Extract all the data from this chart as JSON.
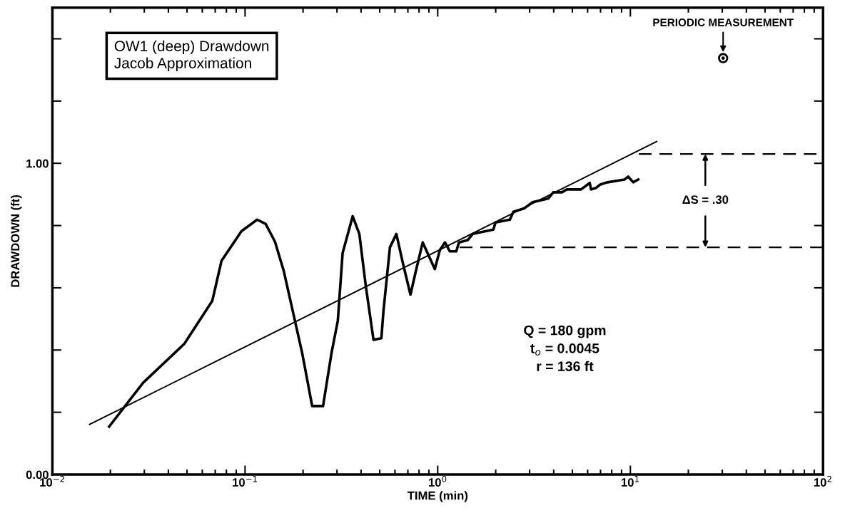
{
  "chart_data": {
    "type": "line",
    "title": "OW1 (deep) Drawdown\nJacob Approximation",
    "xlabel": "TIME (min)",
    "ylabel": "DRAWDOWN (ft)",
    "log": "x",
    "xlim": [
      0.01,
      100
    ],
    "ylim": [
      0,
      1.5
    ],
    "xticks": [
      {
        "value": 0.01,
        "label": "10$^{−2}$"
      },
      {
        "value": 0.1,
        "label": "10$^{−1}$"
      },
      {
        "value": 1,
        "label": "10$^{0}$"
      },
      {
        "value": 10,
        "label": "10$^{1}$"
      },
      {
        "value": 100,
        "label": "10$^{2}$"
      }
    ],
    "yticks": [
      {
        "value": 0,
        "label": "0.00"
      },
      {
        "value": 0.2,
        "label": null
      },
      {
        "value": 0.4,
        "label": null
      },
      {
        "value": 0.6,
        "label": null
      },
      {
        "value": 0.8,
        "label": null
      },
      {
        "value": 1.0,
        "label": "1.00"
      },
      {
        "value": 1.2,
        "label": null
      },
      {
        "value": 1.4,
        "label": null
      }
    ],
    "grid": false,
    "series": [
      {
        "color": "#000000",
        "line_style": "solid",
        "x": [
          0.0197,
          0.0296,
          0.0484,
          0.0676,
          0.0755,
          0.0958,
          0.1156,
          0.128,
          0.143,
          0.159,
          0.198,
          0.223,
          0.254,
          0.281,
          0.303,
          0.321,
          0.362,
          0.392,
          0.423,
          0.464,
          0.51,
          0.523,
          0.565,
          0.61,
          0.659,
          0.722,
          0.767,
          0.836,
          0.966,
          1.026,
          1.09,
          1.156,
          1.248,
          1.29,
          1.43,
          1.52,
          1.945,
          1.995,
          2.37,
          2.47,
          2.81,
          3.11,
          3.75,
          3.98,
          4.41,
          4.68,
          5.55,
          6.15,
          6.25,
          6.64,
          6.98,
          7.6,
          9.33,
          9.75,
          10.35,
          10.99
        ],
        "values": [
          0.154,
          0.295,
          0.42,
          0.558,
          0.687,
          0.782,
          0.819,
          0.805,
          0.748,
          0.653,
          0.39,
          0.22,
          0.22,
          0.39,
          0.494,
          0.712,
          0.83,
          0.773,
          0.608,
          0.433,
          0.438,
          0.526,
          0.73,
          0.773,
          0.68,
          0.578,
          0.649,
          0.746,
          0.66,
          0.721,
          0.746,
          0.717,
          0.717,
          0.746,
          0.753,
          0.773,
          0.787,
          0.81,
          0.819,
          0.844,
          0.855,
          0.875,
          0.887,
          0.907,
          0.907,
          0.916,
          0.916,
          0.937,
          0.916,
          0.921,
          0.932,
          0.939,
          0.948,
          0.957,
          0.939,
          0.948
        ]
      },
      {
        "color": "#000000",
        "line_style": "solid",
        "x": [
          0.0156,
          13.7
        ],
        "values": [
          0.161,
          1.07
        ]
      },
      {
        "color": "#000000",
        "line_style": "dashed",
        "x": [
          11.07,
          100
        ],
        "values": [
          1.03,
          1.03
        ]
      },
      {
        "color": "#000000",
        "line_style": "dashed",
        "x": [
          1.3,
          100
        ],
        "values": [
          0.73,
          0.73
        ]
      },
      {
        "type": "scatter",
        "color": "#000000",
        "marker": "circle",
        "x": [
          30.3
        ],
        "values": [
          1.338
        ]
      }
    ],
    "annotations": [
      {
        "text": "PERIODIC MEASUREMENT",
        "x": 30.3,
        "y": 1.338
      },
      {
        "text": "ΔS = .30",
        "x": 24.5,
        "y": 1.03
      },
      "Q = 180 gpm\nt$_{o}$ = 0.0045\nr = 136 ft"
    ]
  }
}
